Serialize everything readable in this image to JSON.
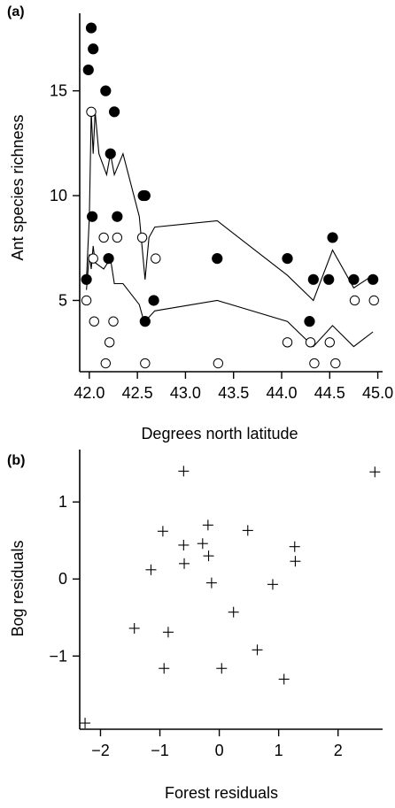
{
  "chart_data": [
    {
      "panel_label": "(a)",
      "type": "scatter",
      "xlabel": "Degrees north latitude",
      "ylabel": "Ant species richness",
      "xlim": [
        41.9,
        45.05
      ],
      "ylim": [
        1.6,
        18.7
      ],
      "xticks": [
        42.0,
        42.5,
        43.0,
        43.5,
        44.0,
        44.5,
        45.0
      ],
      "xtick_labels": [
        "42.0",
        "42.5",
        "43.0",
        "43.5",
        "44.0",
        "44.5",
        "45.0"
      ],
      "yticks": [
        5,
        10,
        15
      ],
      "ytick_labels": [
        "5",
        "10",
        "15"
      ],
      "series": [
        {
          "marker": "filled-circle",
          "points": [
            [
              41.97,
              6
            ],
            [
              41.99,
              16
            ],
            [
              42.02,
              18
            ],
            [
              42.04,
              17
            ],
            [
              42.03,
              9
            ],
            [
              42.17,
              15
            ],
            [
              42.2,
              7
            ],
            [
              42.22,
              12
            ],
            [
              42.26,
              14
            ],
            [
              42.29,
              9
            ],
            [
              42.56,
              10
            ],
            [
              42.58,
              10
            ],
            [
              42.58,
              4
            ],
            [
              42.67,
              5
            ],
            [
              43.33,
              7
            ],
            [
              44.06,
              7
            ],
            [
              44.29,
              4
            ],
            [
              44.33,
              6
            ],
            [
              44.49,
              6
            ],
            [
              44.53,
              8
            ],
            [
              44.75,
              6
            ],
            [
              44.95,
              6
            ]
          ]
        },
        {
          "marker": "open-circle",
          "points": [
            [
              41.97,
              5
            ],
            [
              42.02,
              14
            ],
            [
              42.04,
              7
            ],
            [
              42.05,
              4
            ],
            [
              42.15,
              8
            ],
            [
              42.17,
              2
            ],
            [
              42.21,
              3
            ],
            [
              42.25,
              4
            ],
            [
              42.29,
              8
            ],
            [
              42.55,
              8
            ],
            [
              42.58,
              2
            ],
            [
              42.69,
              7
            ],
            [
              43.34,
              2
            ],
            [
              44.06,
              3
            ],
            [
              44.3,
              3
            ],
            [
              44.34,
              2
            ],
            [
              44.5,
              3
            ],
            [
              44.56,
              2
            ],
            [
              44.76,
              5
            ],
            [
              44.96,
              5
            ]
          ]
        }
      ],
      "lines": [
        {
          "role": "upper",
          "points": [
            [
              41.97,
              6
            ],
            [
              42.0,
              9
            ],
            [
              42.02,
              14
            ],
            [
              42.04,
              12
            ],
            [
              42.06,
              14
            ],
            [
              42.1,
              12
            ],
            [
              42.18,
              11
            ],
            [
              42.22,
              12
            ],
            [
              42.26,
              11
            ],
            [
              42.35,
              12
            ],
            [
              42.52,
              9
            ],
            [
              42.58,
              6
            ],
            [
              42.62,
              8
            ],
            [
              42.68,
              8.5
            ],
            [
              43.33,
              8.8
            ],
            [
              44.06,
              6.2
            ],
            [
              44.33,
              5
            ],
            [
              44.53,
              7.4
            ],
            [
              44.75,
              5.6
            ],
            [
              44.95,
              6.2
            ]
          ]
        },
        {
          "role": "lower",
          "points": [
            [
              41.97,
              5.5
            ],
            [
              42.0,
              7.2
            ],
            [
              42.02,
              6.5
            ],
            [
              42.04,
              7.6
            ],
            [
              42.06,
              6.8
            ],
            [
              42.15,
              6.5
            ],
            [
              42.22,
              7.0
            ],
            [
              42.26,
              5.8
            ],
            [
              42.35,
              5.8
            ],
            [
              42.52,
              4.8
            ],
            [
              42.58,
              3.8
            ],
            [
              42.62,
              4.2
            ],
            [
              42.68,
              4.5
            ],
            [
              43.33,
              5.0
            ],
            [
              44.06,
              4.0
            ],
            [
              44.33,
              2.8
            ],
            [
              44.53,
              3.8
            ],
            [
              44.75,
              2.8
            ],
            [
              44.95,
              3.5
            ]
          ]
        }
      ]
    },
    {
      "panel_label": "(b)",
      "type": "scatter",
      "xlabel": "Forest residuals",
      "ylabel": "Bog residuals",
      "xlim": [
        -2.35,
        2.75
      ],
      "ylim": [
        -1.95,
        1.68
      ],
      "xticks": [
        -2,
        -1,
        0,
        1,
        2
      ],
      "xtick_labels": [
        "−2",
        "−1",
        "0",
        "1",
        "2"
      ],
      "yticks": [
        -1,
        0,
        1
      ],
      "ytick_labels": [
        "−1",
        "0",
        "1"
      ],
      "series": [
        {
          "marker": "plus",
          "points": [
            [
              -0.6,
              1.4
            ],
            [
              2.62,
              1.39
            ],
            [
              -0.95,
              0.62
            ],
            [
              -0.19,
              0.7
            ],
            [
              0.48,
              0.63
            ],
            [
              -0.6,
              0.44
            ],
            [
              -0.28,
              0.46
            ],
            [
              -0.18,
              0.3
            ],
            [
              1.27,
              0.42
            ],
            [
              -0.59,
              0.2
            ],
            [
              1.28,
              0.23
            ],
            [
              -1.15,
              0.12
            ],
            [
              -0.13,
              -0.05
            ],
            [
              0.9,
              -0.07
            ],
            [
              0.24,
              -0.43
            ],
            [
              -1.43,
              -0.64
            ],
            [
              -0.86,
              -0.69
            ],
            [
              0.64,
              -0.92
            ],
            [
              -0.93,
              -1.16
            ],
            [
              0.04,
              -1.16
            ],
            [
              1.09,
              -1.3
            ],
            [
              -2.26,
              -1.87
            ]
          ]
        }
      ]
    }
  ]
}
